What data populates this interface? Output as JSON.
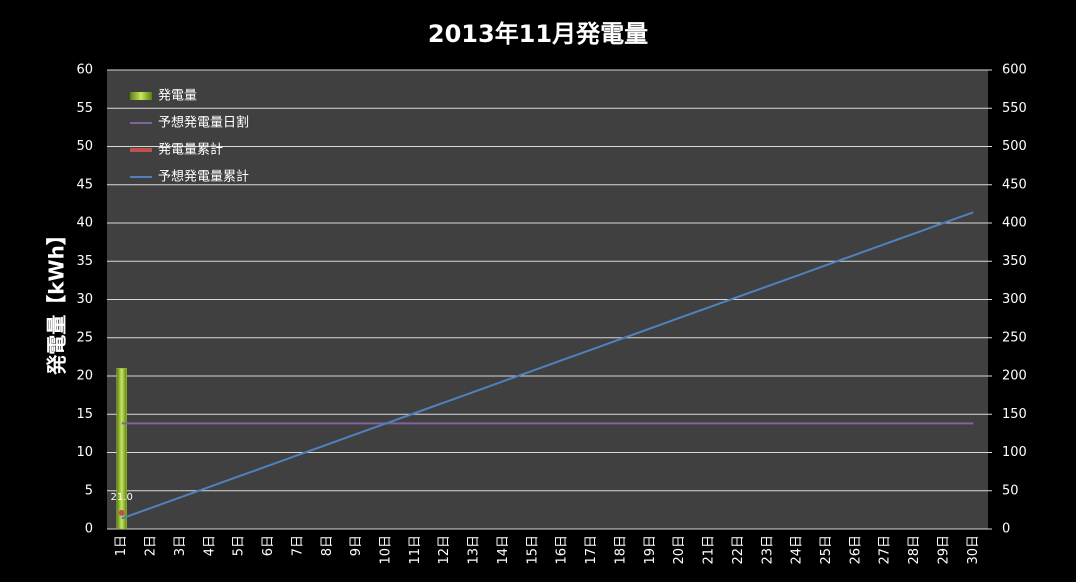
{
  "chart_data": {
    "type": "combo",
    "title": "2013年11月発電量",
    "y_label": "発電量【kWh】",
    "categories": [
      "1日",
      "2日",
      "3日",
      "4日",
      "5日",
      "6日",
      "7日",
      "8日",
      "9日",
      "10日",
      "11日",
      "12日",
      "13日",
      "14日",
      "15日",
      "16日",
      "17日",
      "18日",
      "19日",
      "20日",
      "21日",
      "22日",
      "23日",
      "24日",
      "25日",
      "26日",
      "27日",
      "28日",
      "29日",
      "30日"
    ],
    "ylim": [
      0,
      60
    ],
    "yticks": [
      0,
      5,
      10,
      15,
      20,
      25,
      30,
      35,
      40,
      45,
      50,
      55,
      60
    ],
    "y2lim": [
      0,
      600
    ],
    "y2ticks": [
      0,
      50,
      100,
      150,
      200,
      250,
      300,
      350,
      400,
      450,
      500,
      550,
      600
    ],
    "grid": true,
    "legend": "top-left",
    "series": [
      {
        "name": "発電量",
        "type": "bar",
        "color": "#9acd32",
        "values": [
          21,
          null,
          null,
          null,
          null,
          null,
          null,
          null,
          null,
          null,
          null,
          null,
          null,
          null,
          null,
          null,
          null,
          null,
          null,
          null,
          null,
          null,
          null,
          null,
          null,
          null,
          null,
          null,
          null,
          null
        ]
      },
      {
        "name": "予想発電量日割",
        "type": "line",
        "color": "#8064a2",
        "values": [
          13.8,
          13.8,
          13.8,
          13.8,
          13.8,
          13.8,
          13.8,
          13.8,
          13.8,
          13.8,
          13.8,
          13.8,
          13.8,
          13.8,
          13.8,
          13.8,
          13.8,
          13.8,
          13.8,
          13.8,
          13.8,
          13.8,
          13.8,
          13.8,
          13.8,
          13.8,
          13.8,
          13.8,
          13.8,
          13.8
        ]
      },
      {
        "name": "発電量累計",
        "type": "line",
        "marker": true,
        "axis": "y2",
        "color": "#c0504d",
        "values": [
          21,
          null,
          null,
          null,
          null,
          null,
          null,
          null,
          null,
          null,
          null,
          null,
          null,
          null,
          null,
          null,
          null,
          null,
          null,
          null,
          null,
          null,
          null,
          null,
          null,
          null,
          null,
          null,
          null,
          null
        ],
        "value_labels": [
          "21.0",
          null,
          null,
          null,
          null,
          null,
          null,
          null,
          null,
          null,
          null,
          null,
          null,
          null,
          null,
          null,
          null,
          null,
          null,
          null,
          null,
          null,
          null,
          null,
          null,
          null,
          null,
          null,
          null,
          null
        ]
      },
      {
        "name": "予想発電量累計",
        "type": "line",
        "axis": "y2",
        "color": "#4f81bd",
        "values": [
          13.8,
          27.6,
          41.4,
          55.2,
          69,
          82.8,
          96.6,
          110.4,
          124.2,
          138,
          151.8,
          165.6,
          179.4,
          193.2,
          207,
          220.8,
          234.6,
          248.4,
          262.2,
          276,
          289.8,
          303.6,
          317.4,
          331.2,
          345,
          358.8,
          372.6,
          386.4,
          400.2,
          414
        ]
      }
    ]
  }
}
